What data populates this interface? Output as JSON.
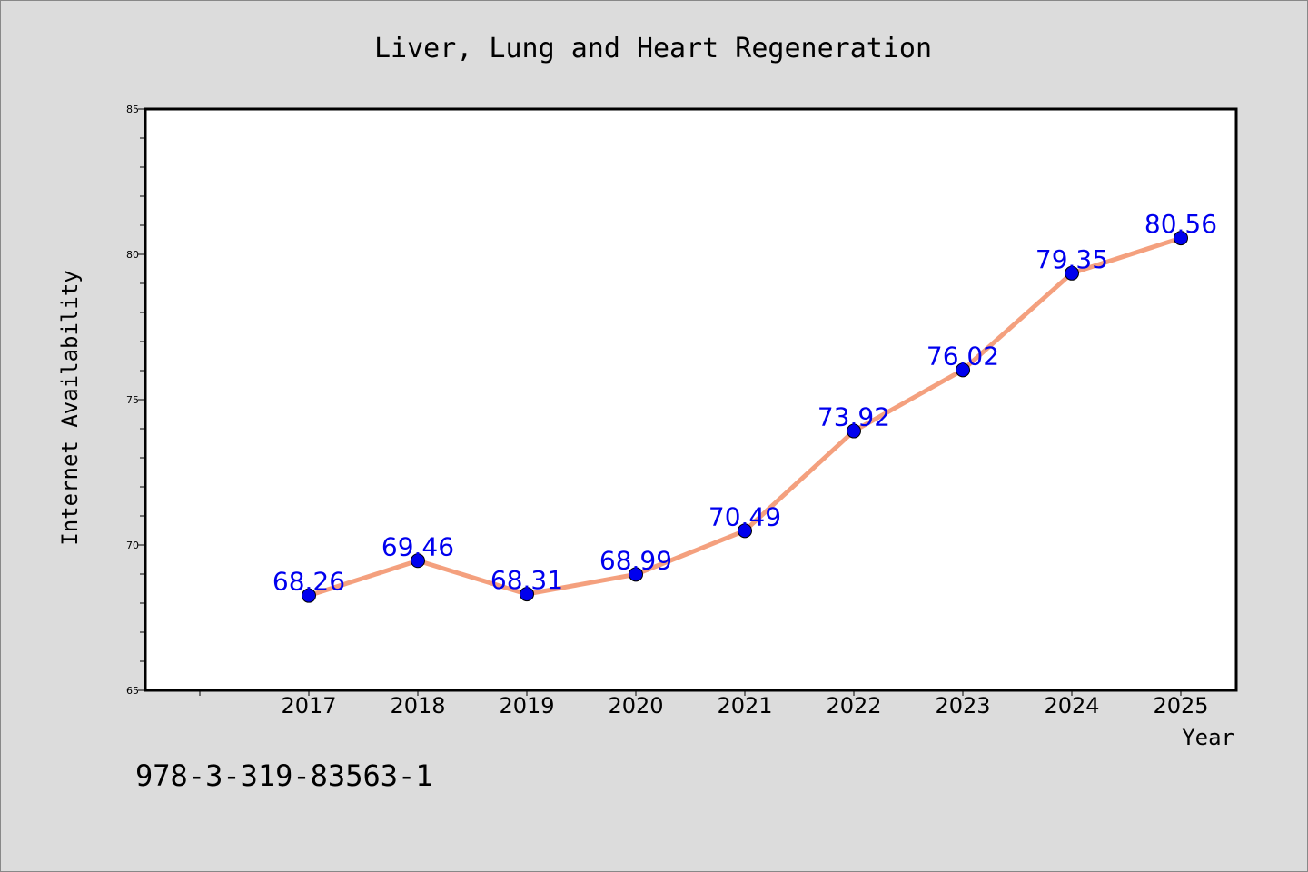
{
  "chart_data": {
    "type": "line",
    "title": "Liver, Lung and Heart Regeneration",
    "xlabel": "Year",
    "ylabel": "Internet Availability",
    "categories": [
      "2017",
      "2018",
      "2019",
      "2020",
      "2021",
      "2022",
      "2023",
      "2024",
      "2025"
    ],
    "series": [
      {
        "values": [
          68.26,
          69.46,
          68.31,
          68.99,
          70.49,
          73.92,
          76.02,
          79.35,
          80.56
        ],
        "line_color": "#f4a07e",
        "marker_color": "#0000ee"
      }
    ],
    "data_labels": [
      "68.26",
      "69.46",
      "68.31",
      "68.99",
      "70.49",
      "73.92",
      "76.02",
      "79.35",
      "80.56"
    ],
    "ylim": [
      65,
      85
    ],
    "yticks": [
      "65",
      "70",
      "75",
      "80",
      "85"
    ],
    "grid": false,
    "legend": "none"
  },
  "footer": {
    "isbn": "978-3-319-83563-1"
  },
  "colors": {
    "background": "#dcdcdc",
    "plot_background": "#ffffff",
    "label_color": "#0000ee"
  }
}
